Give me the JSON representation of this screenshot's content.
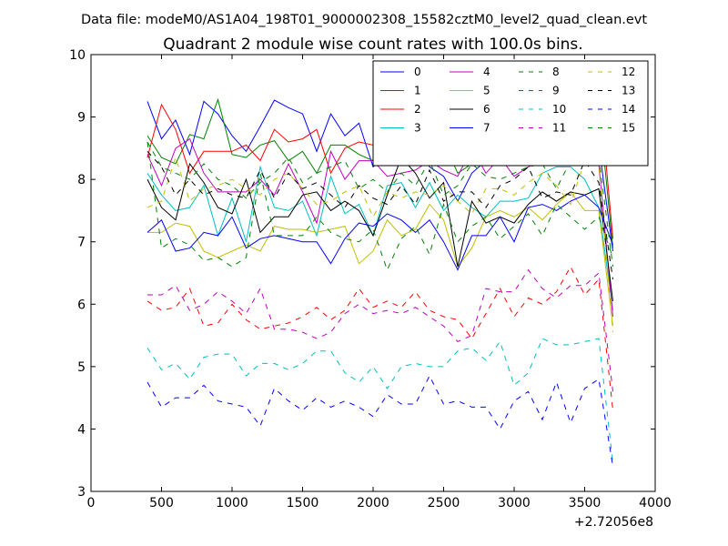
{
  "figure": {
    "suptitle": "Data file: modeM0/AS1A04_198T01_9000002308_15582cztM0_level2_quad_clean.evt"
  },
  "chart_data": {
    "type": "line",
    "title": "Quadrant 2 module wise count rates with 100.0s bins.",
    "xlabel": "",
    "ylabel": "",
    "x_offset_label": "+2.72056e8",
    "xlim": [
      0,
      4000
    ],
    "ylim": [
      3,
      10
    ],
    "x_ticks": [
      0,
      500,
      1000,
      1500,
      2000,
      2500,
      3000,
      3500,
      4000
    ],
    "y_ticks": [
      3,
      4,
      5,
      6,
      7,
      8,
      9,
      10
    ],
    "grid": false,
    "legend_position": "top-right",
    "legend_columns": 4,
    "x": [
      400,
      500,
      600,
      700,
      800,
      900,
      1000,
      1100,
      1200,
      1300,
      1400,
      1500,
      1600,
      1700,
      1800,
      1900,
      2000,
      2100,
      2200,
      2300,
      2400,
      2500,
      2600,
      2700,
      2800,
      2900,
      3000,
      3100,
      3200,
      3300,
      3400,
      3500,
      3600,
      3700
    ],
    "series": [
      {
        "name": "0",
        "color": "#0000ff",
        "dash": "solid",
        "values": [
          9.25,
          8.65,
          8.95,
          8.4,
          9.25,
          9.05,
          8.7,
          8.45,
          8.85,
          9.27,
          9.15,
          9.05,
          8.45,
          9.05,
          8.7,
          8.9,
          8.2,
          8.4,
          8.8,
          8.7,
          8.2,
          8.05,
          7.65,
          8.1,
          8.3,
          9.35,
          8.5,
          9.6,
          9.0,
          8.8,
          8.8,
          8.55,
          8.55,
          6.85
        ]
      },
      {
        "name": "1",
        "color": "#008000",
        "dash": "solid",
        "values": [
          8.7,
          8.35,
          8.25,
          8.72,
          8.65,
          9.28,
          8.4,
          8.35,
          8.55,
          8.62,
          8.3,
          8.45,
          8.1,
          8.55,
          8.55,
          8.4,
          8.3,
          8.95,
          8.55,
          8.75,
          8.55,
          8.6,
          8.1,
          8.25,
          8.6,
          8.75,
          8.3,
          8.4,
          8.45,
          8.3,
          8.3,
          8.3,
          9.2,
          6.9
        ]
      },
      {
        "name": "2",
        "color": "#ff0000",
        "dash": "solid",
        "values": [
          8.35,
          9.2,
          8.8,
          8.1,
          8.45,
          8.45,
          8.45,
          8.55,
          8.3,
          8.8,
          8.6,
          8.65,
          8.8,
          8.1,
          8.5,
          8.6,
          8.55,
          8.25,
          8.85,
          8.5,
          8.85,
          8.8,
          8.4,
          8.6,
          8.3,
          8.55,
          8.4,
          8.5,
          8.85,
          9.1,
          9.3,
          9.4,
          9.55,
          7.05
        ]
      },
      {
        "name": "3",
        "color": "#00bfbf",
        "dash": "solid",
        "values": [
          8.1,
          7.75,
          7.5,
          7.55,
          7.9,
          7.1,
          7.7,
          7.0,
          8.2,
          7.55,
          7.5,
          7.65,
          7.1,
          8.05,
          7.45,
          7.6,
          7.1,
          7.9,
          7.95,
          7.55,
          7.95,
          7.5,
          7.75,
          7.55,
          7.4,
          7.65,
          7.65,
          7.7,
          8.1,
          8.2,
          8.2,
          8.0,
          7.55,
          5.9
        ]
      },
      {
        "name": "4",
        "color": "#bf00bf",
        "dash": "solid",
        "values": [
          8.4,
          7.9,
          8.5,
          8.65,
          8.1,
          7.8,
          7.8,
          7.8,
          8.0,
          7.75,
          8.25,
          7.8,
          7.3,
          8.45,
          8.0,
          8.3,
          8.3,
          8.05,
          8.1,
          8.15,
          8.3,
          8.15,
          8.05,
          8.5,
          8.1,
          8.35,
          8.05,
          8.2,
          8.3,
          8.3,
          8.3,
          8.4,
          8.25,
          5.8
        ]
      },
      {
        "name": "5",
        "color": "#bfbf00",
        "dash": "solid",
        "values": [
          7.15,
          7.15,
          7.3,
          7.25,
          6.85,
          6.75,
          6.85,
          6.95,
          6.85,
          7.25,
          7.2,
          7.2,
          7.15,
          7.2,
          7.25,
          6.65,
          6.85,
          7.35,
          7.1,
          7.2,
          7.6,
          7.35,
          6.6,
          6.9,
          7.4,
          7.5,
          7.4,
          7.55,
          7.35,
          7.6,
          7.8,
          7.5,
          7.5,
          5.65
        ]
      },
      {
        "name": "6",
        "color": "#000000",
        "dash": "solid",
        "values": [
          8.0,
          7.55,
          7.35,
          8.25,
          7.95,
          7.55,
          7.45,
          8.0,
          7.15,
          7.4,
          7.4,
          7.75,
          7.8,
          7.5,
          7.65,
          7.5,
          7.1,
          7.75,
          8.35,
          8.1,
          7.7,
          7.95,
          6.6,
          7.65,
          7.3,
          7.4,
          7.3,
          7.6,
          7.8,
          7.65,
          7.8,
          7.75,
          7.85,
          6.05
        ]
      },
      {
        "name": "7",
        "color": "#0000ff",
        "dash": "solid",
        "values": [
          7.15,
          7.35,
          6.85,
          6.9,
          7.15,
          7.1,
          7.4,
          6.9,
          7.05,
          7.1,
          7.05,
          7.0,
          7.0,
          6.65,
          7.05,
          7.3,
          7.25,
          7.45,
          7.35,
          7.15,
          7.35,
          7.0,
          6.55,
          7.1,
          7.1,
          7.4,
          7.0,
          7.55,
          7.6,
          7.5,
          7.65,
          7.75,
          7.55,
          6.95
        ]
      },
      {
        "name": "8",
        "color": "#008000",
        "dash": "dashed",
        "values": [
          8.6,
          8.2,
          8.1,
          8.0,
          8.25,
          8.0,
          7.9,
          7.7,
          7.95,
          8.1,
          8.35,
          7.95,
          8.1,
          8.2,
          8.3,
          7.85,
          8.0,
          7.8,
          8.1,
          7.9,
          8.3,
          7.75,
          7.9,
          8.25,
          8.05,
          8.0,
          8.1,
          8.2,
          8.25,
          7.85,
          8.3,
          8.3,
          8.35,
          6.6
        ]
      },
      {
        "name": "9",
        "color": "#ff0000",
        "dash": "dashed",
        "values": [
          6.05,
          5.9,
          5.95,
          6.25,
          5.65,
          5.7,
          6.0,
          5.75,
          5.6,
          5.65,
          5.7,
          5.8,
          5.95,
          5.75,
          5.9,
          6.25,
          5.95,
          6.05,
          5.95,
          6.2,
          5.9,
          5.8,
          5.75,
          5.45,
          5.85,
          6.25,
          5.8,
          6.1,
          6.0,
          6.2,
          6.6,
          6.15,
          6.4,
          4.3
        ]
      },
      {
        "name": "10",
        "color": "#00bfbf",
        "dash": "dashed",
        "values": [
          5.3,
          4.95,
          5.05,
          4.8,
          5.15,
          5.2,
          5.2,
          4.85,
          5.05,
          5.05,
          4.95,
          5.05,
          5.25,
          5.25,
          4.9,
          4.75,
          5.0,
          4.65,
          5.0,
          5.05,
          5.0,
          5.0,
          5.25,
          5.3,
          5.1,
          5.4,
          4.7,
          4.9,
          5.45,
          5.35,
          5.35,
          5.4,
          5.45,
          3.45
        ]
      },
      {
        "name": "11",
        "color": "#bf00bf",
        "dash": "dashed",
        "values": [
          6.15,
          6.15,
          6.3,
          5.9,
          6.0,
          6.2,
          6.05,
          5.85,
          6.25,
          5.6,
          5.6,
          5.55,
          5.45,
          5.55,
          5.85,
          6.0,
          5.85,
          5.9,
          5.85,
          5.95,
          5.8,
          5.65,
          5.4,
          5.5,
          6.25,
          6.2,
          6.2,
          6.55,
          6.25,
          6.1,
          6.3,
          6.3,
          6.5,
          4.6
        ]
      },
      {
        "name": "12",
        "color": "#bfbf00",
        "dash": "dashed",
        "values": [
          7.55,
          7.65,
          8.35,
          7.65,
          7.85,
          7.9,
          8.0,
          7.85,
          7.75,
          8.0,
          8.1,
          7.85,
          7.6,
          7.65,
          7.8,
          7.9,
          7.4,
          7.8,
          7.7,
          7.8,
          7.75,
          7.9,
          7.65,
          7.45,
          7.85,
          7.85,
          7.75,
          7.95,
          8.1,
          7.9,
          7.6,
          8.3,
          8.2,
          5.55
        ]
      },
      {
        "name": "13",
        "color": "#000000",
        "dash": "dashed",
        "values": [
          8.45,
          8.2,
          7.75,
          8.0,
          7.75,
          7.85,
          7.75,
          7.7,
          8.15,
          7.7,
          8.1,
          7.85,
          7.95,
          7.75,
          7.55,
          7.9,
          7.7,
          7.6,
          7.9,
          7.6,
          8.15,
          7.65,
          7.8,
          7.8,
          7.55,
          7.9,
          8.0,
          8.2,
          7.7,
          7.8,
          7.75,
          8.3,
          7.95,
          6.4
        ]
      },
      {
        "name": "14",
        "color": "#0000ff",
        "dash": "dashed",
        "values": [
          4.75,
          4.35,
          4.5,
          4.5,
          4.7,
          4.45,
          4.4,
          4.35,
          4.05,
          4.65,
          4.45,
          4.3,
          4.5,
          4.35,
          4.45,
          4.35,
          4.2,
          4.55,
          4.4,
          4.4,
          4.85,
          4.4,
          4.45,
          4.35,
          4.35,
          4.0,
          4.45,
          4.6,
          4.15,
          4.75,
          4.1,
          4.65,
          4.8,
          3.4
        ]
      },
      {
        "name": "15",
        "color": "#008000",
        "dash": "dashed",
        "values": [
          8.6,
          6.9,
          7.05,
          6.95,
          6.7,
          6.75,
          6.6,
          6.75,
          8.1,
          7.1,
          7.1,
          7.1,
          7.4,
          7.15,
          7.05,
          7.0,
          7.2,
          6.55,
          7.05,
          7.25,
          6.8,
          7.6,
          7.0,
          7.25,
          7.4,
          7.05,
          7.25,
          7.45,
          7.1,
          7.6,
          7.4,
          7.2,
          7.4,
          6.75
        ]
      }
    ]
  }
}
